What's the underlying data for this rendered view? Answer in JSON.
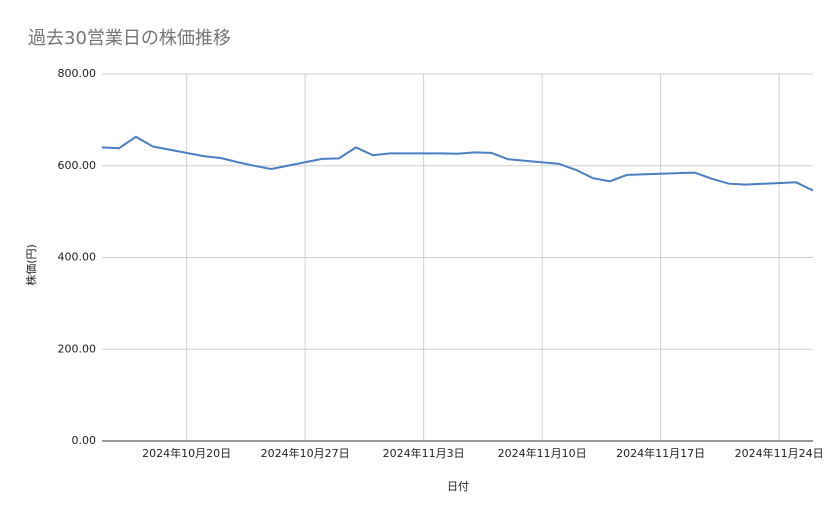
{
  "chart_data": {
    "type": "line",
    "title": "過去30営業日の株価推移",
    "x_label": "日付",
    "y_label": "株価(円)",
    "x": [
      "2024-10-15",
      "2024-10-16",
      "2024-10-17",
      "2024-10-18",
      "2024-10-21",
      "2024-10-22",
      "2024-10-23",
      "2024-10-24",
      "2024-10-25",
      "2024-10-28",
      "2024-10-29",
      "2024-10-30",
      "2024-10-31",
      "2024-11-01",
      "2024-11-04",
      "2024-11-05",
      "2024-11-06",
      "2024-11-07",
      "2024-11-08",
      "2024-11-11",
      "2024-11-12",
      "2024-11-13",
      "2024-11-14",
      "2024-11-15",
      "2024-11-18",
      "2024-11-19",
      "2024-11-20",
      "2024-11-21",
      "2024-11-22",
      "2024-11-25",
      "2024-11-26"
    ],
    "values": [
      640,
      638,
      663,
      642,
      621,
      617,
      608,
      600,
      593,
      615,
      616,
      640,
      623,
      627,
      627,
      626,
      629,
      628,
      614,
      604,
      591,
      573,
      566,
      580,
      584,
      585,
      572,
      561,
      559,
      564,
      546
    ],
    "color": "#4a7fc1",
    "xlim": [
      "2024-10-15",
      "2024-11-26"
    ],
    "xticks": [
      {
        "value": "2024-10-20",
        "label": "2024年10月20日"
      },
      {
        "value": "2024-10-27",
        "label": "2024年10月27日"
      },
      {
        "value": "2024-11-03",
        "label": "2024年11月3日"
      },
      {
        "value": "2024-11-10",
        "label": "2024年11月10日"
      },
      {
        "value": "2024-11-17",
        "label": "2024年11月17日"
      },
      {
        "value": "2024-11-24",
        "label": "2024年11月24日"
      }
    ],
    "ylim": [
      0,
      800
    ],
    "yticks": [
      {
        "value": 0,
        "label": "0.00"
      },
      {
        "value": 200,
        "label": "200.00"
      },
      {
        "value": 400,
        "label": "400.00"
      },
      {
        "value": 600,
        "label": "600.00"
      },
      {
        "value": 800,
        "label": "800.00"
      }
    ],
    "grid": true
  }
}
